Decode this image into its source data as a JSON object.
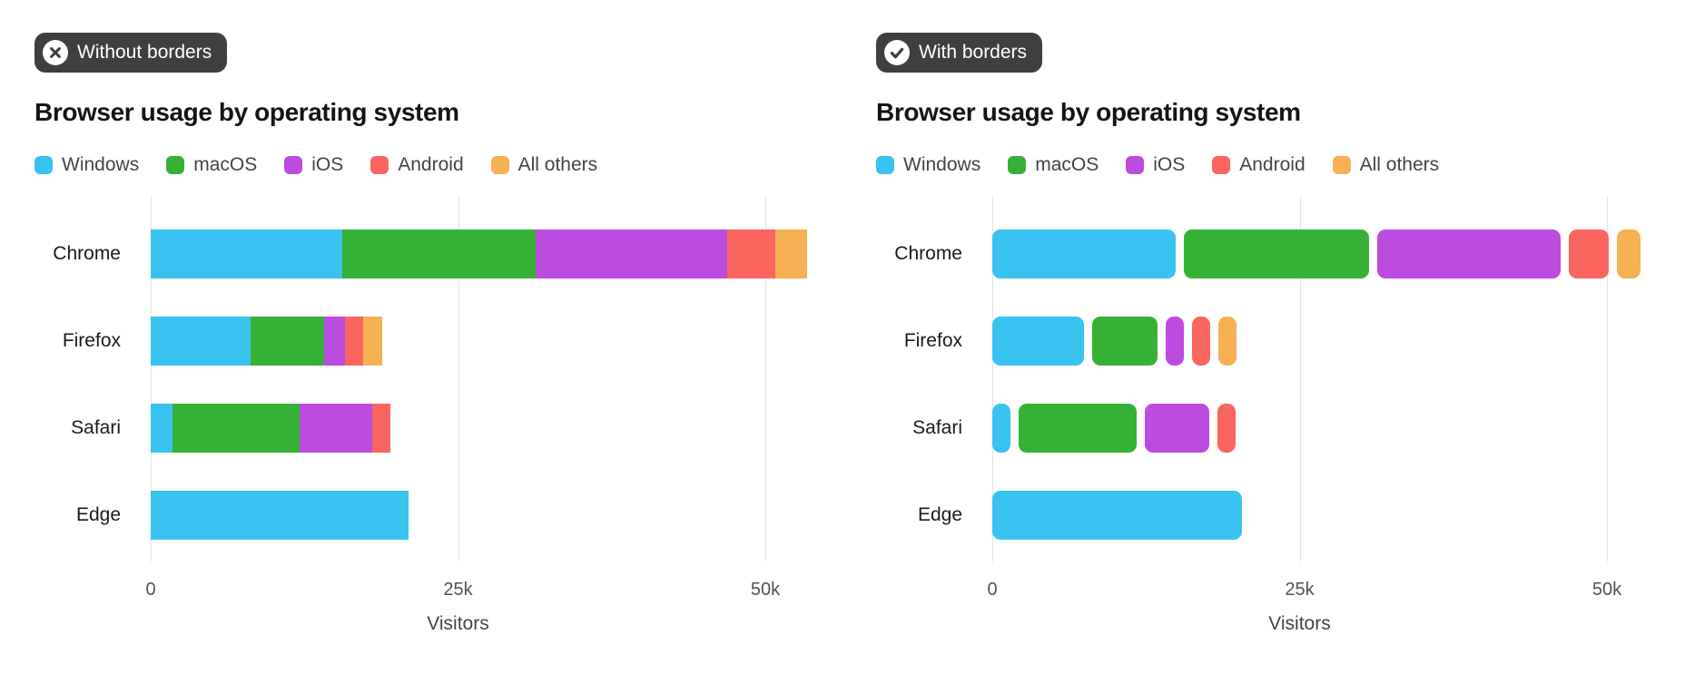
{
  "page": {
    "background": "#ffffff"
  },
  "panels": [
    {
      "badge": {
        "label": "Without borders",
        "icon": "x-circle-icon"
      },
      "title": "Browser usage by operating system"
    },
    {
      "badge": {
        "label": "With borders",
        "icon": "check-circle-icon"
      },
      "title": "Browser usage by operating system"
    }
  ],
  "colors": {
    "badge_background": "#3f3f3f",
    "badge_text": "#ffffff",
    "gridline": "#e4e4e7",
    "tick_text": "#52525b",
    "category_text": "#1a1a1a",
    "legend_text": "#43434b",
    "windows": "#38c3f1",
    "macos": "#35b235",
    "ios": "#bc4bdf",
    "android": "#fa6560",
    "all_others": "#f5b152"
  },
  "chart_data": [
    {
      "type": "bar",
      "variant": "without-borders",
      "orientation": "horizontal",
      "stacked": true,
      "title": "Browser usage by operating system",
      "categories": [
        "Chrome",
        "Firefox",
        "Safari",
        "Edge"
      ],
      "series": [
        {
          "name": "Windows",
          "color": "#38c3f1",
          "values": [
            15600,
            8100,
            1800,
            21000
          ]
        },
        {
          "name": "macOS",
          "color": "#35b235",
          "values": [
            15700,
            6000,
            10300,
            0
          ]
        },
        {
          "name": "iOS",
          "color": "#bc4bdf",
          "values": [
            15600,
            1700,
            5900,
            0
          ]
        },
        {
          "name": "Android",
          "color": "#fa6560",
          "values": [
            3900,
            1500,
            1500,
            0
          ]
        },
        {
          "name": "All others",
          "color": "#f5b152",
          "values": [
            2600,
            1500,
            0,
            0
          ]
        }
      ],
      "xlabel": "Visitors",
      "xlim": [
        0,
        50000
      ],
      "xticks": [
        {
          "value": 0,
          "label": "0"
        },
        {
          "value": 25000,
          "label": "25k"
        },
        {
          "value": 50000,
          "label": "50k"
        }
      ],
      "legend_position": "top",
      "grid": "vertical"
    },
    {
      "type": "bar",
      "variant": "with-borders",
      "orientation": "horizontal",
      "stacked": true,
      "title": "Browser usage by operating system",
      "categories": [
        "Chrome",
        "Firefox",
        "Safari",
        "Edge"
      ],
      "series": [
        {
          "name": "Windows",
          "color": "#38c3f1",
          "values": [
            15600,
            8100,
            1800,
            21000
          ]
        },
        {
          "name": "macOS",
          "color": "#35b235",
          "values": [
            15700,
            6000,
            10300,
            0
          ]
        },
        {
          "name": "iOS",
          "color": "#bc4bdf",
          "values": [
            15600,
            1700,
            5900,
            0
          ]
        },
        {
          "name": "Android",
          "color": "#fa6560",
          "values": [
            3900,
            1500,
            1500,
            0
          ]
        },
        {
          "name": "All others",
          "color": "#f5b152",
          "values": [
            2600,
            1500,
            0,
            0
          ]
        }
      ],
      "xlabel": "Visitors",
      "xlim": [
        0,
        50000
      ],
      "xticks": [
        {
          "value": 0,
          "label": "0"
        },
        {
          "value": 25000,
          "label": "25k"
        },
        {
          "value": 50000,
          "label": "50k"
        }
      ],
      "legend_position": "top",
      "grid": "vertical"
    }
  ]
}
